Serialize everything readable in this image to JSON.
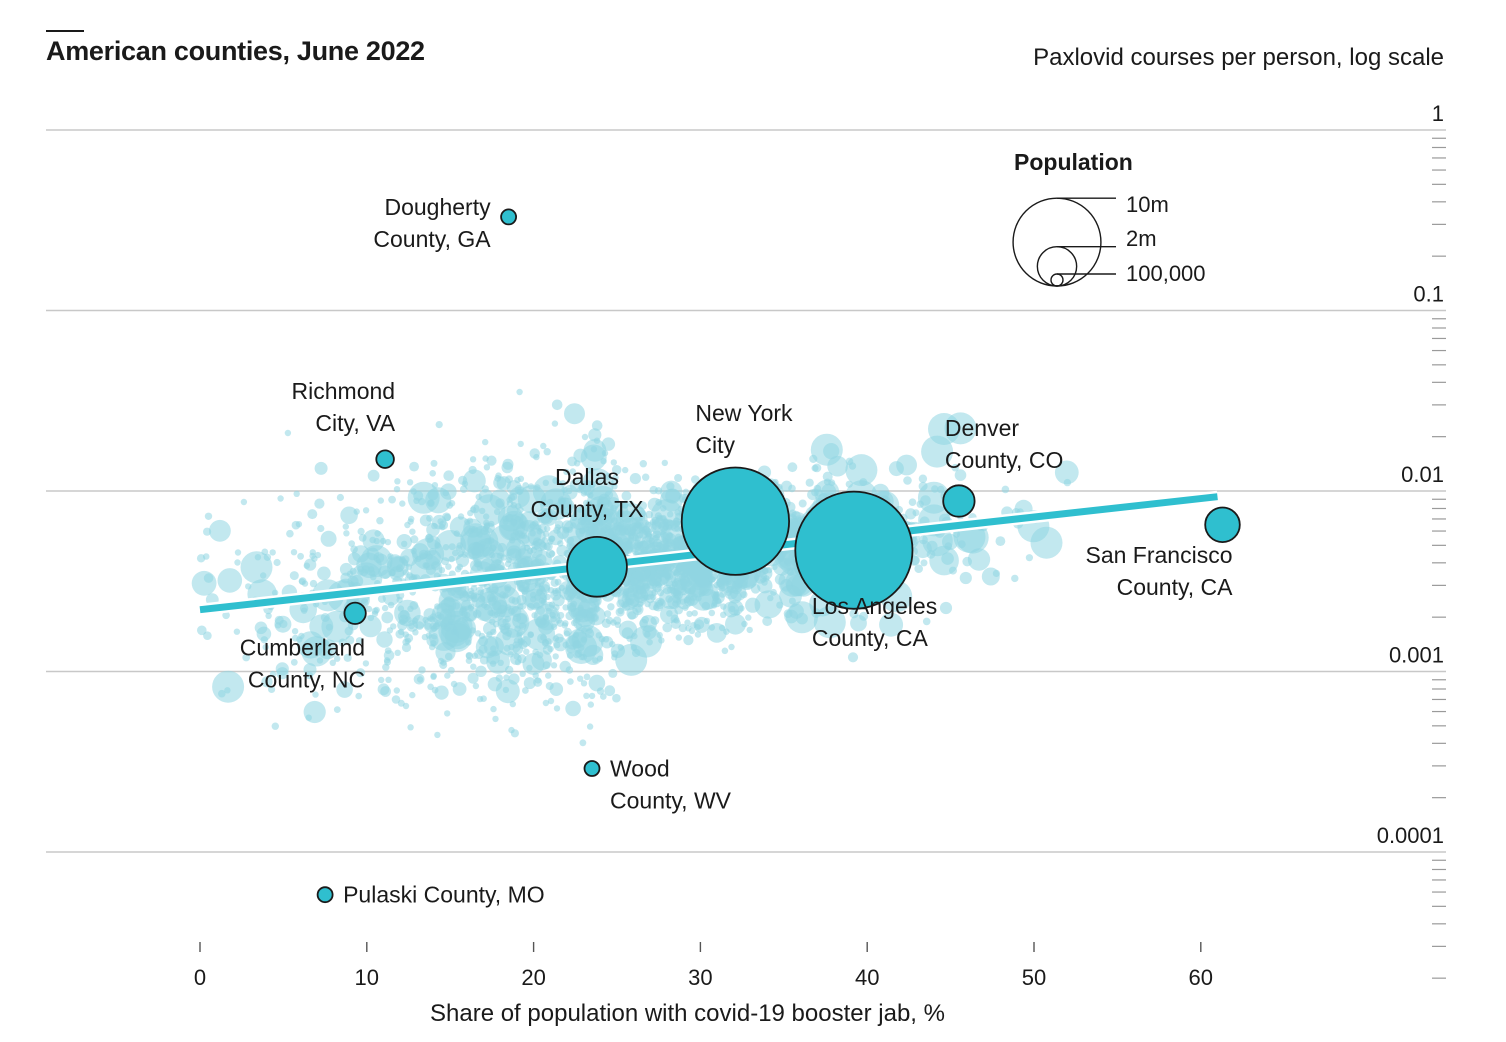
{
  "title": "American counties, June 2022",
  "colors": {
    "background_point": "#8fd6e1",
    "highlight_point": "#2fbfcf",
    "trend_line": "#2fbfcf",
    "grid": "#c8c8c8",
    "text": "#1a1a1a"
  },
  "chart_data": {
    "type": "scatter",
    "title": "American counties, June 2022",
    "xlabel": "Share of population with covid-19 booster jab, %",
    "ylabel": "Paxlovid courses per person, log scale",
    "y_scale": "log",
    "xlim": [
      0,
      65
    ],
    "ylim": [
      2e-05,
      1
    ],
    "x_ticks": [
      "0",
      "10",
      "20",
      "30",
      "40",
      "50",
      "60"
    ],
    "y_ticks": [
      "1",
      "0.1",
      "0.01",
      "0.001",
      "0.0001"
    ],
    "grid": true,
    "size_legend": {
      "title": "Population",
      "entries": [
        {
          "label": "10m",
          "population": 10000000
        },
        {
          "label": "2m",
          "population": 2000000
        },
        {
          "label": "100,000",
          "population": 100000
        }
      ]
    },
    "trend_line": {
      "x": [
        0,
        61
      ],
      "y": [
        0.0022,
        0.0093
      ]
    },
    "highlighted": [
      {
        "name": "Dougherty County, GA",
        "lines": [
          "Dougherty",
          "County, GA"
        ],
        "x": 18.5,
        "y": 0.33,
        "population": 85000
      },
      {
        "name": "Richmond City, VA",
        "lines": [
          "Richmond",
          "City, VA"
        ],
        "x": 11.1,
        "y": 0.015,
        "population": 226000
      },
      {
        "name": "New York City",
        "lines": [
          "New York",
          "City"
        ],
        "x": 32.1,
        "y": 0.0068,
        "population": 8400000
      },
      {
        "name": "Denver County, CO",
        "lines": [
          "Denver",
          "County, CO"
        ],
        "x": 45.5,
        "y": 0.0088,
        "population": 715000
      },
      {
        "name": "Dallas County, TX",
        "lines": [
          "Dallas",
          "County, TX"
        ],
        "x": 23.8,
        "y": 0.0038,
        "population": 2600000
      },
      {
        "name": "Los Angeles County, CA",
        "lines": [
          "Los Angeles",
          "County, CA"
        ],
        "x": 39.2,
        "y": 0.0047,
        "population": 10000000
      },
      {
        "name": "San Francisco County, CA",
        "lines": [
          "San Francisco",
          "County, CA"
        ],
        "x": 61.3,
        "y": 0.0065,
        "population": 870000
      },
      {
        "name": "Cumberland County, NC",
        "lines": [
          "Cumberland",
          "County, NC"
        ],
        "x": 9.3,
        "y": 0.0021,
        "population": 335000
      },
      {
        "name": "Wood County, WV",
        "lines": [
          "Wood",
          "County, WV"
        ],
        "x": 23.5,
        "y": 0.00029,
        "population": 84000
      },
      {
        "name": "Pulaski County, MO",
        "lines": [
          "Pulaski County, MO"
        ],
        "x": 7.5,
        "y": 5.8e-05,
        "population": 53000
      }
    ]
  }
}
